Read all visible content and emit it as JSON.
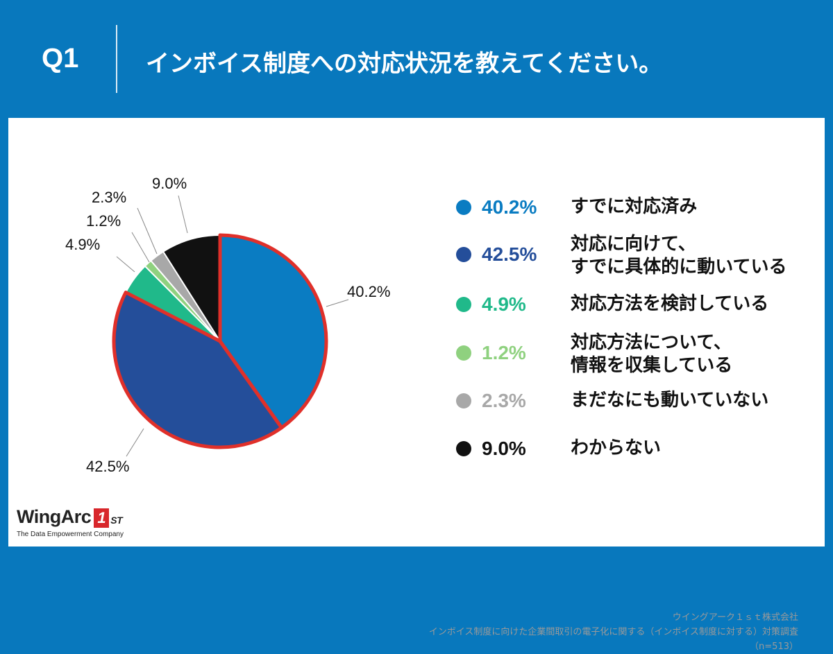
{
  "header": {
    "q_label": "Q1",
    "question": "インボイス制度への対応状況を教えてください。"
  },
  "chart_data": {
    "type": "pie",
    "title": "インボイス制度への対応状況を教えてください。",
    "slices": [
      {
        "label": "すでに対応済み",
        "value": 40.2,
        "pct_text": "40.2%",
        "color": "#0a7cc2",
        "highlight": true
      },
      {
        "label": "対応に向けて、\nすでに具体的に動いている",
        "value": 42.5,
        "pct_text": "42.5%",
        "color": "#244e9a",
        "highlight": true
      },
      {
        "label": "対応方法を検討している",
        "value": 4.9,
        "pct_text": "4.9%",
        "color": "#20b98a",
        "highlight": false
      },
      {
        "label": "対応方法について、\n情報を収集している",
        "value": 1.2,
        "pct_text": "1.2%",
        "color": "#8fd17f",
        "highlight": false
      },
      {
        "label": "まだなにも動いていない",
        "value": 2.3,
        "pct_text": "2.3%",
        "color": "#a8a8a8",
        "highlight": false
      },
      {
        "label": "わからない",
        "value": 9.0,
        "pct_text": "9.0%",
        "color": "#111111",
        "highlight": false
      }
    ],
    "highlight_color": "#e0302a",
    "start": "12 o'clock",
    "direction": "clockwise"
  },
  "footer": {
    "company": "ウイングアーク１ｓｔ株式会社",
    "survey": "インボイス制度に向けた企業間取引の電子化に関する（インボイス制度に対する）対策調査",
    "sample": "（n=513）",
    "logo_name": "WingArc",
    "logo_mark": "1",
    "logo_st": "ST",
    "logo_tagline": "The Data Empowerment Company"
  }
}
